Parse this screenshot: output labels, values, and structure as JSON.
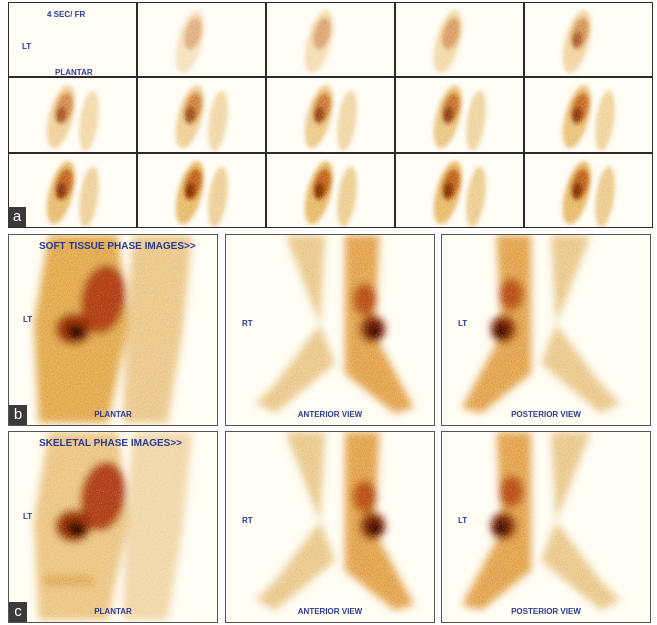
{
  "panels": [
    {
      "label": "a",
      "caption": "4 SEC/ FR",
      "side": "LT",
      "view": "PLANTAR"
    },
    {
      "label": "b",
      "title": "SOFT TISSUE PHASE IMAGES>>",
      "images": [
        {
          "side": "LT",
          "view": "PLANTAR"
        },
        {
          "side": "RT",
          "view": "ANTERIOR VIEW"
        },
        {
          "side": "LT",
          "view": "POSTERIOR VIEW"
        }
      ]
    },
    {
      "label": "c",
      "title": "SKELETAL PHASE IMAGES>>",
      "images": [
        {
          "side": "LT",
          "view": "PLANTAR"
        },
        {
          "side": "RT",
          "view": "ANTERIOR VIEW"
        },
        {
          "side": "LT",
          "view": "POSTERIOR VIEW"
        }
      ]
    }
  ]
}
